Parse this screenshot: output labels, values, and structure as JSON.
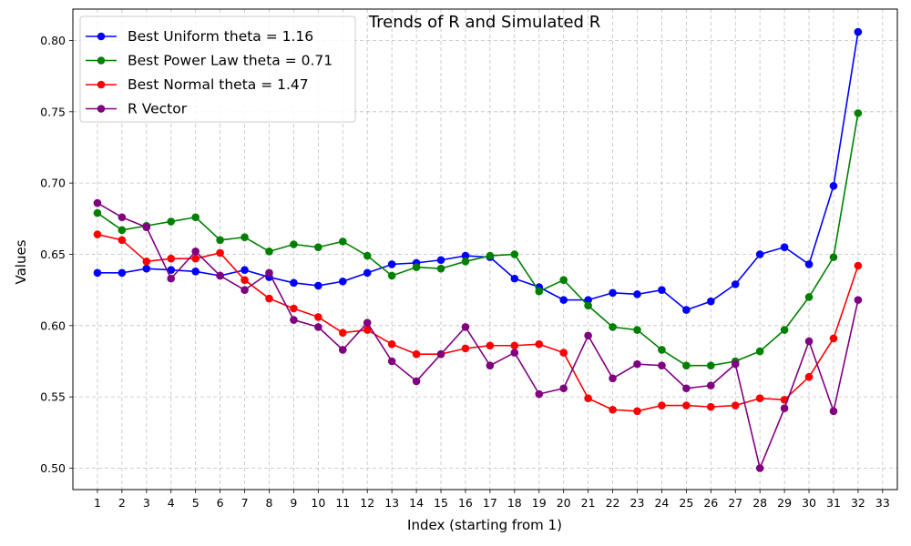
{
  "chart_data": {
    "type": "line",
    "title": "Trends of R and Simulated R",
    "xlabel": "Index (starting from 1)",
    "ylabel": "Values",
    "x_ticks": [
      1,
      2,
      3,
      4,
      5,
      6,
      7,
      8,
      9,
      10,
      11,
      12,
      13,
      14,
      15,
      16,
      17,
      18,
      19,
      20,
      21,
      22,
      23,
      24,
      25,
      26,
      27,
      28,
      29,
      30,
      31,
      32,
      33
    ],
    "y_ticks": [
      0.5,
      0.55,
      0.6,
      0.65,
      0.7,
      0.75,
      0.8
    ],
    "y_tick_labels": [
      "0.50",
      "0.55",
      "0.60",
      "0.65",
      "0.70",
      "0.75",
      "0.80"
    ],
    "xlim": [
      0.0,
      33.6
    ],
    "ylim": [
      0.485,
      0.822
    ],
    "grid": true,
    "legend_position": "top-left",
    "x": [
      1,
      2,
      3,
      4,
      5,
      6,
      7,
      8,
      9,
      10,
      11,
      12,
      13,
      14,
      15,
      16,
      17,
      18,
      19,
      20,
      21,
      22,
      23,
      24,
      25,
      26,
      27,
      28,
      29,
      30,
      31,
      32
    ],
    "series": [
      {
        "name": "Best Uniform theta = 1.16",
        "color": "#0000ff",
        "values": [
          0.637,
          0.637,
          0.64,
          0.639,
          0.638,
          0.635,
          0.639,
          0.634,
          0.63,
          0.628,
          0.631,
          0.637,
          0.643,
          0.644,
          0.646,
          0.649,
          0.648,
          0.633,
          0.627,
          0.618,
          0.618,
          0.623,
          0.622,
          0.625,
          0.611,
          0.617,
          0.629,
          0.65,
          0.655,
          0.643,
          0.698,
          0.806
        ]
      },
      {
        "name": "Best Power Law theta = 0.71",
        "color": "#008000",
        "values": [
          0.679,
          0.667,
          0.67,
          0.673,
          0.676,
          0.66,
          0.662,
          0.652,
          0.657,
          0.655,
          0.659,
          0.649,
          0.635,
          0.641,
          0.64,
          0.645,
          0.649,
          0.65,
          0.624,
          0.632,
          0.614,
          0.599,
          0.597,
          0.583,
          0.572,
          0.572,
          0.575,
          0.582,
          0.597,
          0.62,
          0.648,
          0.749
        ]
      },
      {
        "name": "Best Normal theta = 1.47",
        "color": "#ff0000",
        "values": [
          0.664,
          0.66,
          0.645,
          0.647,
          0.647,
          0.651,
          0.632,
          0.619,
          0.612,
          0.606,
          0.595,
          0.597,
          0.587,
          0.58,
          0.58,
          0.584,
          0.586,
          0.586,
          0.587,
          0.581,
          0.549,
          0.541,
          0.54,
          0.544,
          0.544,
          0.543,
          0.544,
          0.549,
          0.548,
          0.564,
          0.591,
          0.642
        ]
      },
      {
        "name": "R Vector",
        "color": "#800080",
        "values": [
          0.686,
          0.676,
          0.669,
          0.633,
          0.652,
          0.635,
          0.625,
          0.637,
          0.604,
          0.599,
          0.583,
          0.602,
          0.575,
          0.561,
          0.58,
          0.599,
          0.572,
          0.581,
          0.552,
          0.556,
          0.593,
          0.563,
          0.573,
          0.572,
          0.556,
          0.558,
          0.573,
          0.5,
          0.542,
          0.589,
          0.54,
          0.618
        ]
      }
    ]
  }
}
